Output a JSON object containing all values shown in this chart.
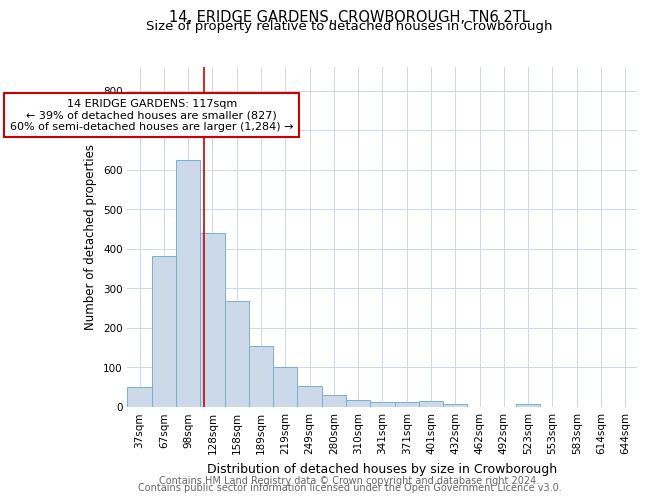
{
  "title": "14, ERIDGE GARDENS, CROWBOROUGH, TN6 2TL",
  "subtitle": "Size of property relative to detached houses in Crowborough",
  "xlabel": "Distribution of detached houses by size in Crowborough",
  "ylabel": "Number of detached properties",
  "categories": [
    "37sqm",
    "67sqm",
    "98sqm",
    "128sqm",
    "158sqm",
    "189sqm",
    "219sqm",
    "249sqm",
    "280sqm",
    "310sqm",
    "341sqm",
    "371sqm",
    "401sqm",
    "432sqm",
    "462sqm",
    "492sqm",
    "523sqm",
    "553sqm",
    "583sqm",
    "614sqm",
    "644sqm"
  ],
  "values": [
    50,
    383,
    625,
    440,
    268,
    155,
    100,
    53,
    30,
    18,
    12,
    12,
    15,
    8,
    0,
    0,
    8,
    0,
    0,
    0,
    0
  ],
  "bar_color": "#ccd9e8",
  "bar_edge_color": "#7aafd4",
  "vline_color": "#cc0000",
  "annotation_text": "14 ERIDGE GARDENS: 117sqm\n← 39% of detached houses are smaller (827)\n60% of semi-detached houses are larger (1,284) →",
  "annotation_box_color": "#ffffff",
  "annotation_box_edge": "#cc0000",
  "ylim": [
    0,
    860
  ],
  "yticks": [
    0,
    100,
    200,
    300,
    400,
    500,
    600,
    700,
    800
  ],
  "footer1": "Contains HM Land Registry data © Crown copyright and database right 2024.",
  "footer2": "Contains public sector information licensed under the Open Government Licence v3.0.",
  "background_color": "#ffffff",
  "grid_color": "#ccd8e8",
  "title_fontsize": 10.5,
  "subtitle_fontsize": 9.5,
  "xlabel_fontsize": 9,
  "ylabel_fontsize": 8.5,
  "tick_fontsize": 7.5,
  "annotation_fontsize": 8,
  "footer_fontsize": 7
}
